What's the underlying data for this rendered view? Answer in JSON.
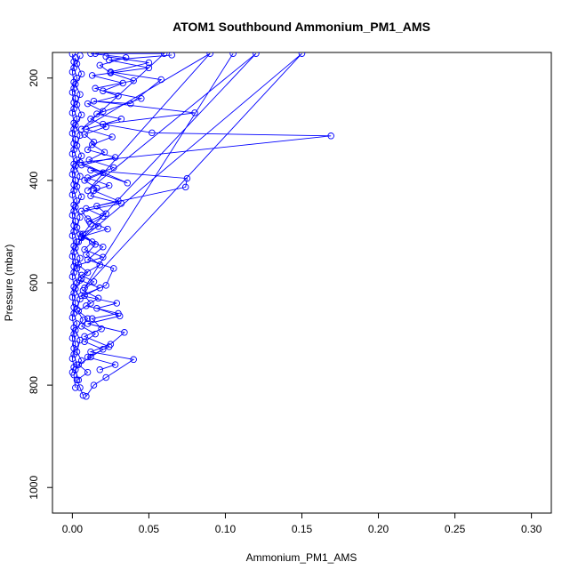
{
  "chart_data": {
    "type": "line",
    "title": "ATOM1 Southbound Ammonium_PM1_AMS",
    "xlabel": "Ammonium_PM1_AMS",
    "ylabel": "Pressure (mbar)",
    "xlim": [
      -0.013,
      0.313
    ],
    "ylim": [
      1050,
      150
    ],
    "y_reversed": true,
    "x_ticks": [
      0.0,
      0.05,
      0.1,
      0.15,
      0.2,
      0.25,
      0.3
    ],
    "x_tick_labels": [
      "0.00",
      "0.05",
      "0.10",
      "0.15",
      "0.20",
      "0.25",
      "0.30"
    ],
    "y_ticks": [
      200,
      400,
      600,
      800,
      1000
    ],
    "y_tick_labels": [
      "200",
      "400",
      "600",
      "800",
      "1000"
    ],
    "grid": false,
    "marker": "open-circle",
    "series": [
      {
        "color": "#0000ff",
        "points": [
          [
            0.007,
            820
          ],
          [
            0.005,
            805
          ],
          [
            0.003,
            790
          ],
          [
            0.01,
            775
          ],
          [
            0.004,
            760
          ],
          [
            0.012,
            745
          ],
          [
            0.02,
            730
          ],
          [
            0.008,
            715
          ],
          [
            0.015,
            700
          ],
          [
            0.006,
            685
          ],
          [
            0.01,
            670
          ],
          [
            0.004,
            655
          ],
          [
            0.012,
            640
          ],
          [
            0.008,
            625
          ],
          [
            0.018,
            610
          ],
          [
            0.005,
            595
          ],
          [
            0.01,
            580
          ],
          [
            0.004,
            565
          ],
          [
            0.02,
            550
          ],
          [
            0.008,
            535
          ],
          [
            0.013,
            520
          ],
          [
            0.005,
            505
          ],
          [
            0.017,
            490
          ],
          [
            0.01,
            475
          ],
          [
            0.006,
            460
          ],
          [
            0.032,
            445
          ],
          [
            0.012,
            430
          ],
          [
            0.016,
            415
          ],
          [
            0.008,
            400
          ],
          [
            0.02,
            385
          ],
          [
            0.006,
            370
          ],
          [
            0.028,
            355
          ],
          [
            0.01,
            340
          ],
          [
            0.014,
            325
          ],
          [
            0.008,
            310
          ],
          [
            0.022,
            295
          ],
          [
            0.012,
            280
          ],
          [
            0.02,
            265
          ],
          [
            0.01,
            250
          ],
          [
            0.03,
            235
          ],
          [
            0.015,
            220
          ],
          [
            0.04,
            205
          ],
          [
            0.025,
            190
          ],
          [
            0.018,
            175
          ],
          [
            0.035,
            160
          ],
          [
            0.012,
            152
          ]
        ]
      },
      {
        "color": "#0000ff",
        "points": [
          [
            0.009,
            822
          ],
          [
            0.014,
            800
          ],
          [
            0.022,
            785
          ],
          [
            0.04,
            750
          ],
          [
            0.012,
            735
          ],
          [
            0.025,
            720
          ],
          [
            0.034,
            697
          ],
          [
            0.01,
            680
          ],
          [
            0.031,
            665
          ],
          [
            0.016,
            650
          ],
          [
            0.029,
            640
          ],
          [
            0.006,
            625
          ],
          [
            0.022,
            605
          ],
          [
            0.027,
            572
          ],
          [
            0.01,
            555
          ],
          [
            0.02,
            530
          ],
          [
            0.006,
            510
          ],
          [
            0.023,
            495
          ],
          [
            0.011,
            480
          ],
          [
            0.022,
            465
          ],
          [
            0.016,
            450
          ],
          [
            0.074,
            413
          ],
          [
            0.075,
            396
          ],
          [
            0.012,
            380
          ],
          [
            0.036,
            405
          ],
          [
            0.005,
            365
          ],
          [
            0.169,
            313
          ],
          [
            0.052,
            307
          ],
          [
            0.02,
            290
          ],
          [
            0.08,
            268
          ],
          [
            0.014,
            245
          ],
          [
            0.038,
            250
          ],
          [
            0.058,
            203
          ],
          [
            0.025,
            188
          ],
          [
            0.05,
            170
          ],
          [
            0.022,
            158
          ]
        ]
      },
      {
        "color": "#0000ff",
        "points": [
          [
            0.002,
            805
          ],
          [
            0.001,
            780
          ],
          [
            0.003,
            760
          ],
          [
            0.001,
            740
          ],
          [
            0.002,
            720
          ],
          [
            0.001,
            700
          ],
          [
            0.003,
            680
          ],
          [
            0.001,
            660
          ],
          [
            0.002,
            640
          ],
          [
            0.001,
            620
          ],
          [
            0.003,
            600
          ],
          [
            0.001,
            580
          ],
          [
            0.002,
            560
          ],
          [
            0.001,
            540
          ],
          [
            0.003,
            520
          ],
          [
            0.001,
            500
          ],
          [
            0.002,
            480
          ],
          [
            0.001,
            460
          ],
          [
            0.003,
            440
          ],
          [
            0.001,
            420
          ],
          [
            0.002,
            400
          ],
          [
            0.001,
            380
          ],
          [
            0.003,
            360
          ],
          [
            0.001,
            340
          ],
          [
            0.002,
            320
          ],
          [
            0.001,
            300
          ],
          [
            0.003,
            280
          ],
          [
            0.001,
            260
          ],
          [
            0.002,
            240
          ],
          [
            0.001,
            220
          ],
          [
            0.003,
            200
          ],
          [
            0.001,
            180
          ],
          [
            0.002,
            160
          ]
        ]
      },
      {
        "color": "#0000ff",
        "points": [
          [
            0.004,
            790
          ],
          [
            0.002,
            770
          ],
          [
            0.006,
            752
          ],
          [
            0.003,
            735
          ],
          [
            0.005,
            712
          ],
          [
            0.002,
            693
          ],
          [
            0.007,
            673
          ],
          [
            0.003,
            652
          ],
          [
            0.005,
            632
          ],
          [
            0.002,
            612
          ],
          [
            0.006,
            592
          ],
          [
            0.003,
            572
          ],
          [
            0.005,
            552
          ],
          [
            0.002,
            532
          ],
          [
            0.006,
            512
          ],
          [
            0.003,
            492
          ],
          [
            0.005,
            472
          ],
          [
            0.002,
            452
          ],
          [
            0.006,
            432
          ],
          [
            0.003,
            412
          ],
          [
            0.005,
            392
          ],
          [
            0.002,
            372
          ],
          [
            0.006,
            352
          ],
          [
            0.003,
            332
          ],
          [
            0.005,
            312
          ],
          [
            0.002,
            292
          ],
          [
            0.006,
            272
          ],
          [
            0.003,
            252
          ],
          [
            0.005,
            232
          ],
          [
            0.002,
            212
          ],
          [
            0.006,
            192
          ],
          [
            0.003,
            172
          ],
          [
            0.005,
            156
          ]
        ]
      },
      {
        "color": "#0000ff",
        "points": [
          [
            0.0,
            775
          ],
          [
            0.001,
            765
          ],
          [
            0.0,
            748
          ],
          [
            0.001,
            728
          ],
          [
            0.0,
            708
          ],
          [
            0.001,
            688
          ],
          [
            0.0,
            668
          ],
          [
            0.001,
            648
          ],
          [
            0.0,
            628
          ],
          [
            0.001,
            608
          ],
          [
            0.0,
            588
          ],
          [
            0.001,
            568
          ],
          [
            0.0,
            548
          ],
          [
            0.001,
            528
          ],
          [
            0.0,
            508
          ],
          [
            0.001,
            488
          ],
          [
            0.0,
            468
          ],
          [
            0.001,
            448
          ],
          [
            0.0,
            428
          ],
          [
            0.001,
            408
          ],
          [
            0.0,
            388
          ],
          [
            0.001,
            368
          ],
          [
            0.0,
            348
          ],
          [
            0.001,
            328
          ],
          [
            0.0,
            308
          ],
          [
            0.001,
            288
          ],
          [
            0.0,
            268
          ],
          [
            0.001,
            248
          ],
          [
            0.0,
            228
          ],
          [
            0.001,
            208
          ],
          [
            0.0,
            188
          ],
          [
            0.001,
            168
          ],
          [
            0.0,
            153
          ]
        ]
      },
      {
        "color": "#0000ff",
        "points": [
          [
            0.018,
            770
          ],
          [
            0.028,
            760
          ],
          [
            0.01,
            745
          ],
          [
            0.024,
            725
          ],
          [
            0.008,
            705
          ],
          [
            0.019,
            690
          ],
          [
            0.013,
            670
          ],
          [
            0.03,
            660
          ],
          [
            0.009,
            645
          ],
          [
            0.017,
            630
          ],
          [
            0.007,
            615
          ],
          [
            0.014,
            598
          ],
          [
            0.006,
            585
          ],
          [
            0.018,
            565
          ],
          [
            0.009,
            545
          ],
          [
            0.015,
            525
          ],
          [
            0.007,
            505
          ],
          [
            0.012,
            485
          ],
          [
            0.02,
            470
          ],
          [
            0.009,
            455
          ],
          [
            0.03,
            440
          ],
          [
            0.014,
            420
          ],
          [
            0.024,
            410
          ],
          [
            0.01,
            395
          ],
          [
            0.027,
            375
          ],
          [
            0.011,
            360
          ],
          [
            0.021,
            345
          ],
          [
            0.013,
            330
          ],
          [
            0.026,
            315
          ],
          [
            0.009,
            300
          ],
          [
            0.032,
            280
          ],
          [
            0.016,
            270
          ],
          [
            0.045,
            240
          ],
          [
            0.02,
            225
          ],
          [
            0.033,
            210
          ],
          [
            0.013,
            195
          ],
          [
            0.05,
            180
          ],
          [
            0.024,
            165
          ],
          [
            0.065,
            155
          ]
        ]
      },
      {
        "color": "#0000ff",
        "points": [
          [
            0.015,
            152
          ],
          [
            0.06,
            152
          ],
          [
            0.006,
            300
          ],
          [
            0.09,
            152
          ],
          [
            0.01,
            420
          ],
          [
            0.12,
            152
          ],
          [
            0.004,
            520
          ],
          [
            0.15,
            152
          ],
          [
            0.008,
            610
          ],
          [
            0.105,
            152
          ]
        ]
      }
    ]
  }
}
